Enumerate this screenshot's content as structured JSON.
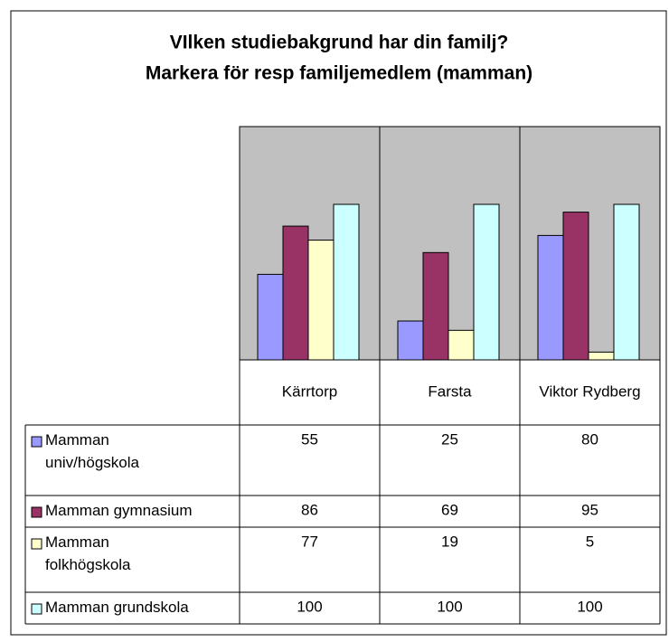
{
  "chart_data": {
    "type": "bar",
    "title": [
      "VIlken studiebakgrund har din familj?",
      "Markera för resp familjemedlem (mamman)"
    ],
    "categories": [
      "Kärrtorp",
      "Farsta",
      "Viktor Rydberg"
    ],
    "series": [
      {
        "name": "Mamman univ/högskola",
        "color": "#9999ff",
        "values": [
          55,
          25,
          80
        ]
      },
      {
        "name": "Mamman gymnasium",
        "color": "#993366",
        "values": [
          86,
          69,
          95
        ]
      },
      {
        "name": "Mamman folkhögskola",
        "color": "#ffffcc",
        "values": [
          77,
          19,
          5
        ]
      },
      {
        "name": "Mamman grundskola",
        "color": "#ccffff",
        "values": [
          100,
          100,
          100
        ]
      }
    ],
    "ylim": [
      0,
      150
    ],
    "plot_background": "#c0c0c0"
  }
}
